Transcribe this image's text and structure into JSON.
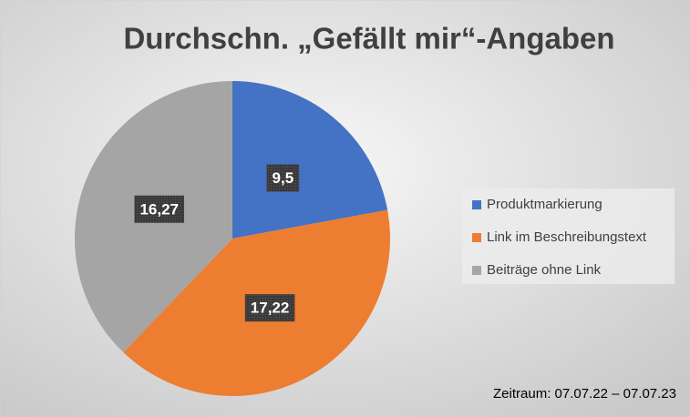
{
  "chart_data": {
    "type": "pie",
    "title": "Durchschn. „Gefällt mir“-Angaben",
    "categories": [
      "Produktmarkierung",
      "Link im Beschreibungstext",
      "Beiträge ohne Link"
    ],
    "values": [
      9.5,
      17.22,
      16.27
    ],
    "value_labels": [
      "9,5",
      "17,22",
      "16,27"
    ],
    "colors": [
      "#4472c4",
      "#ed7d31",
      "#a5a5a5"
    ],
    "legend": "right",
    "annotation": "Zeitraum: 07.07.22 – 07.07.23"
  }
}
